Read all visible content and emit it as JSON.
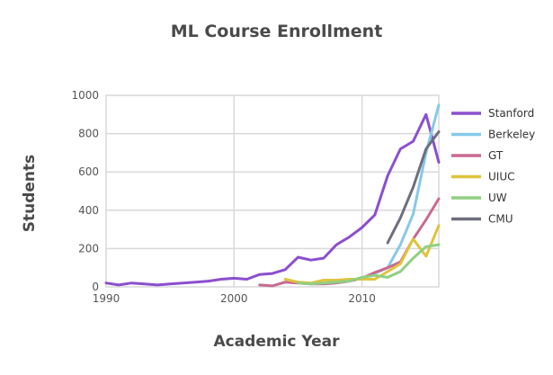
{
  "chart_data": {
    "type": "line",
    "title": "ML Course Enrollment",
    "xlabel": "Academic Year",
    "ylabel": "Students",
    "xlim": [
      1990,
      2016
    ],
    "ylim": [
      0,
      1000
    ],
    "xticks": [
      1990,
      2000,
      2010
    ],
    "yticks": [
      0,
      200,
      400,
      600,
      800,
      1000
    ],
    "grid": true,
    "legend_position": "right",
    "series": [
      {
        "name": "Stanford",
        "color": "#8b4fcf",
        "x": [
          1990,
          1991,
          1992,
          1993,
          1994,
          1995,
          1996,
          1997,
          1998,
          1999,
          2000,
          2001,
          2002,
          2003,
          2004,
          2005,
          2006,
          2007,
          2008,
          2009,
          2010,
          2011,
          2012,
          2013,
          2014,
          2015,
          2016
        ],
        "y": [
          20,
          10,
          20,
          15,
          10,
          15,
          20,
          25,
          30,
          40,
          45,
          40,
          65,
          70,
          90,
          155,
          140,
          150,
          220,
          260,
          310,
          375,
          580,
          720,
          760,
          900,
          650
        ]
      },
      {
        "name": "Berkeley",
        "color": "#86c9ea",
        "x": [
          2011,
          2012,
          2013,
          2014,
          2015,
          2016
        ],
        "y": [
          70,
          100,
          220,
          380,
          700,
          950
        ]
      },
      {
        "name": "GT",
        "color": "#c86a8f",
        "x": [
          2002,
          2003,
          2004,
          2005,
          2006,
          2007,
          2008,
          2009,
          2010,
          2011,
          2012,
          2013,
          2014,
          2015,
          2016
        ],
        "y": [
          10,
          5,
          25,
          20,
          15,
          15,
          20,
          30,
          45,
          75,
          100,
          130,
          250,
          350,
          460
        ]
      },
      {
        "name": "UIUC",
        "color": "#e0c43c",
        "x": [
          2004,
          2005,
          2006,
          2007,
          2008,
          2009,
          2010,
          2011,
          2012,
          2013,
          2014,
          2015,
          2016
        ],
        "y": [
          40,
          25,
          20,
          35,
          35,
          40,
          40,
          40,
          80,
          120,
          250,
          160,
          320
        ]
      },
      {
        "name": "UW",
        "color": "#8fcf82",
        "x": [
          2005,
          2006,
          2007,
          2008,
          2009,
          2010,
          2011,
          2012,
          2013,
          2014,
          2015,
          2016
        ],
        "y": [
          20,
          15,
          20,
          25,
          30,
          50,
          60,
          50,
          80,
          150,
          210,
          220
        ]
      },
      {
        "name": "CMU",
        "color": "#6e6e7e",
        "x": [
          2012,
          2013,
          2014,
          2015,
          2016
        ],
        "y": [
          230,
          360,
          520,
          720,
          810
        ]
      }
    ]
  }
}
